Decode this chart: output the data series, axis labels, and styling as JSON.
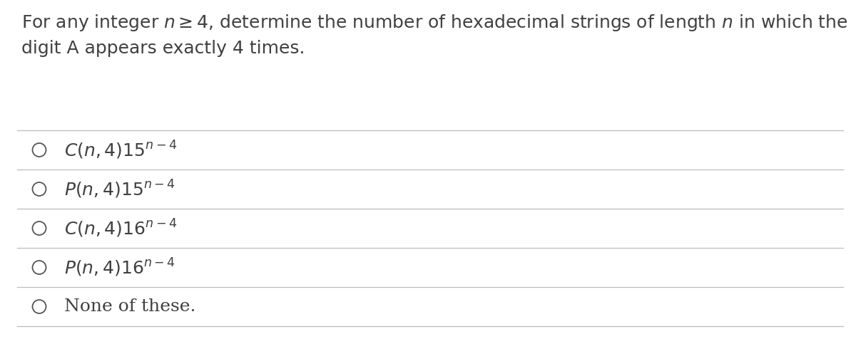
{
  "background_color": "#ffffff",
  "text_color": "#404040",
  "question_line1": "For any integer $n \\geq 4$, determine the number of hexadecimal strings of length $n$ in which the",
  "question_line2": "digit A appears exactly 4 times.",
  "options": [
    "$C(n, 4)15^{n-4}$",
    "$P(n, 4)15^{n-4}$",
    "$C(n, 4)16^{n-4}$",
    "$P(n, 4)16^{n-4}$",
    "None of these."
  ],
  "question_fontsize": 18,
  "option_fontsize": 18,
  "fig_width": 12.0,
  "fig_height": 4.83,
  "dpi": 100,
  "line_color": "#bbbbbb",
  "circle_color": "#555555"
}
